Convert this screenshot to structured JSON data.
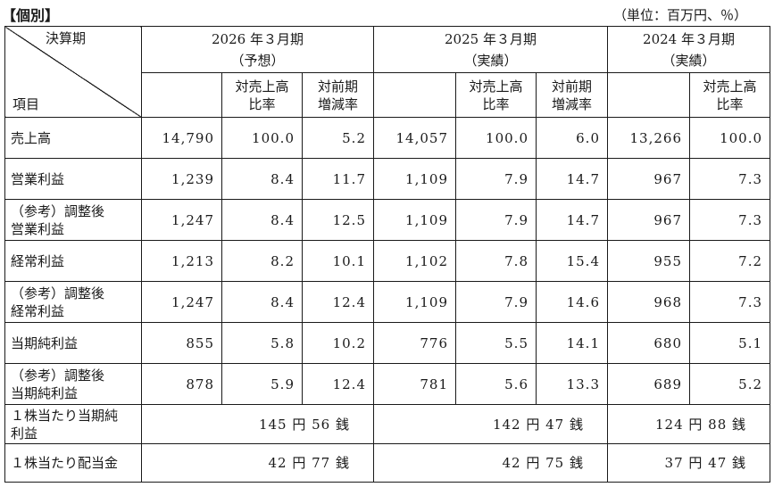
{
  "heading": "【個別】",
  "unit": "（単位：百万円、％）",
  "header": {
    "corner_top": "決算期",
    "corner_bottom": "項目",
    "periods": [
      {
        "year": "2026 年３月期",
        "kind": "（予想）"
      },
      {
        "year": "2025 年３月期",
        "kind": "（実績）"
      },
      {
        "year": "2024 年３月期",
        "kind": "（実績）"
      }
    ],
    "ratio_label": [
      "対売上高",
      "比率"
    ],
    "change_label": [
      "対前期",
      "増減率"
    ]
  },
  "rows": [
    {
      "label": [
        "売上高"
      ],
      "v": [
        "14,790",
        "100.0",
        "5.2",
        "14,057",
        "100.0",
        "6.0",
        "13,266",
        "100.0"
      ]
    },
    {
      "label": [
        "営業利益"
      ],
      "v": [
        "1,239",
        "8.4",
        "11.7",
        "1,109",
        "7.9",
        "14.7",
        "967",
        "7.3"
      ]
    },
    {
      "label": [
        "（参考）調整後",
        "営業利益"
      ],
      "v": [
        "1,247",
        "8.4",
        "12.5",
        "1,109",
        "7.9",
        "14.7",
        "967",
        "7.3"
      ]
    },
    {
      "label": [
        "経常利益"
      ],
      "v": [
        "1,213",
        "8.2",
        "10.1",
        "1,102",
        "7.8",
        "15.4",
        "955",
        "7.2"
      ]
    },
    {
      "label": [
        "（参考）調整後",
        "経常利益"
      ],
      "v": [
        "1,247",
        "8.4",
        "12.4",
        "1,109",
        "7.9",
        "14.6",
        "968",
        "7.3"
      ]
    },
    {
      "label": [
        "当期純利益"
      ],
      "v": [
        "855",
        "5.8",
        "10.2",
        "776",
        "5.5",
        "14.1",
        "680",
        "5.1"
      ]
    },
    {
      "label": [
        "（参考）調整後",
        "当期純利益"
      ],
      "v": [
        "878",
        "5.9",
        "12.4",
        "781",
        "5.6",
        "13.3",
        "689",
        "5.2"
      ]
    }
  ],
  "eps": {
    "label": [
      "１株当たり当期純",
      "利益"
    ],
    "values": [
      "145 円 56 銭",
      "142 円 47 銭",
      "124 円 88 銭"
    ]
  },
  "dps": {
    "label": [
      "１株当たり配当金"
    ],
    "values": [
      "42 円 77 銭",
      "42 円 75 銭",
      "37 円 47 銭"
    ]
  }
}
